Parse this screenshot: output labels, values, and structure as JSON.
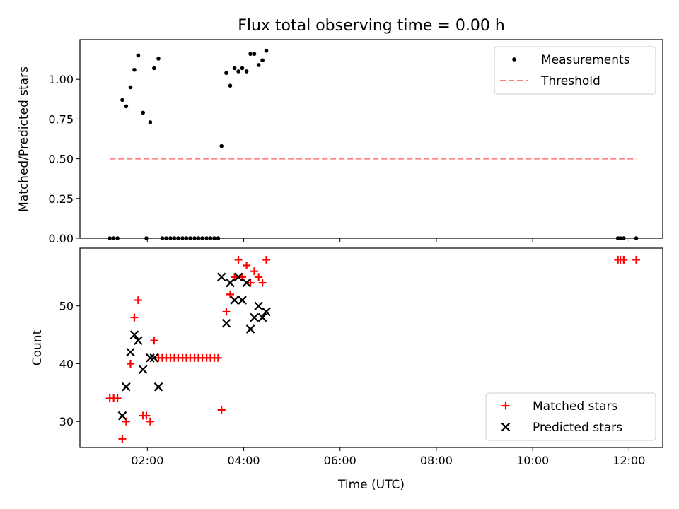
{
  "chart_data": [
    {
      "type": "scatter",
      "title": "Flux total observing time = 0.00 h",
      "xlabel": "",
      "ylabel": "Matched/Predicted stars",
      "xlim": [
        0.6,
        12.7
      ],
      "ylim": [
        0.0,
        1.25
      ],
      "yticks": [
        0.0,
        0.25,
        0.5,
        0.75,
        1.0
      ],
      "ytick_labels": [
        "0.00",
        "0.25",
        "0.50",
        "0.75",
        "1.00"
      ],
      "xticks": [
        2,
        4,
        6,
        8,
        10,
        12
      ],
      "legend": {
        "placement": "top-right",
        "entries": [
          "Measurements",
          "Threshold"
        ]
      },
      "series": [
        {
          "name": "Measurements",
          "marker": "dot",
          "color": "#000000",
          "points": [
            [
              1.22,
              0.0
            ],
            [
              1.3,
              0.0
            ],
            [
              1.38,
              0.0
            ],
            [
              1.48,
              0.87
            ],
            [
              1.56,
              0.83
            ],
            [
              1.65,
              0.95
            ],
            [
              1.73,
              1.06
            ],
            [
              1.81,
              1.15
            ],
            [
              1.91,
              0.79
            ],
            [
              1.98,
              0.0
            ],
            [
              2.06,
              0.73
            ],
            [
              2.14,
              1.07
            ],
            [
              2.23,
              1.13
            ],
            [
              2.31,
              0.0
            ],
            [
              2.39,
              0.0
            ],
            [
              2.48,
              0.0
            ],
            [
              2.56,
              0.0
            ],
            [
              2.64,
              0.0
            ],
            [
              2.73,
              0.0
            ],
            [
              2.81,
              0.0
            ],
            [
              2.89,
              0.0
            ],
            [
              2.98,
              0.0
            ],
            [
              3.06,
              0.0
            ],
            [
              3.14,
              0.0
            ],
            [
              3.23,
              0.0
            ],
            [
              3.31,
              0.0
            ],
            [
              3.39,
              0.0
            ],
            [
              3.47,
              0.0
            ],
            [
              3.54,
              0.58
            ],
            [
              3.64,
              1.04
            ],
            [
              3.72,
              0.96
            ],
            [
              3.81,
              1.07
            ],
            [
              3.89,
              1.05
            ],
            [
              3.97,
              1.07
            ],
            [
              4.06,
              1.05
            ],
            [
              4.14,
              1.16
            ],
            [
              4.22,
              1.16
            ],
            [
              4.31,
              1.09
            ],
            [
              4.39,
              1.12
            ],
            [
              4.47,
              1.18
            ],
            [
              11.77,
              0.0
            ],
            [
              11.82,
              0.0
            ],
            [
              11.89,
              0.0
            ],
            [
              12.15,
              0.0
            ]
          ]
        },
        {
          "name": "Threshold",
          "style": "dashed-line",
          "color": "#ff7f7f",
          "x": [
            1.22,
            12.15
          ],
          "y": [
            0.5,
            0.5
          ]
        }
      ]
    },
    {
      "type": "scatter",
      "title": "",
      "xlabel": "Time (UTC)",
      "ylabel": "Count",
      "xlim": [
        0.6,
        12.7
      ],
      "ylim": [
        25.5,
        60.0
      ],
      "yticks": [
        30,
        40,
        50
      ],
      "ytick_labels": [
        "30",
        "40",
        "50"
      ],
      "xticks": [
        2,
        4,
        6,
        8,
        10,
        12
      ],
      "xtick_labels": [
        "02:00",
        "04:00",
        "06:00",
        "08:00",
        "10:00",
        "12:00"
      ],
      "legend": {
        "placement": "bottom-right",
        "entries": [
          "Matched stars",
          "Predicted stars"
        ]
      },
      "series": [
        {
          "name": "Matched stars",
          "marker": "plus",
          "color": "#ff0000",
          "points": [
            [
              1.22,
              34
            ],
            [
              1.3,
              34
            ],
            [
              1.38,
              34
            ],
            [
              1.48,
              27
            ],
            [
              1.56,
              30
            ],
            [
              1.65,
              40
            ],
            [
              1.73,
              48
            ],
            [
              1.81,
              51
            ],
            [
              1.91,
              31
            ],
            [
              1.98,
              31
            ],
            [
              2.06,
              30
            ],
            [
              2.14,
              44
            ],
            [
              2.23,
              41
            ],
            [
              2.31,
              41
            ],
            [
              2.39,
              41
            ],
            [
              2.48,
              41
            ],
            [
              2.56,
              41
            ],
            [
              2.64,
              41
            ],
            [
              2.73,
              41
            ],
            [
              2.81,
              41
            ],
            [
              2.89,
              41
            ],
            [
              2.98,
              41
            ],
            [
              3.06,
              41
            ],
            [
              3.14,
              41
            ],
            [
              3.23,
              41
            ],
            [
              3.31,
              41
            ],
            [
              3.39,
              41
            ],
            [
              3.47,
              41
            ],
            [
              3.54,
              32
            ],
            [
              3.64,
              49
            ],
            [
              3.72,
              52
            ],
            [
              3.81,
              55
            ],
            [
              3.89,
              58
            ],
            [
              3.97,
              55
            ],
            [
              4.06,
              57
            ],
            [
              4.14,
              54
            ],
            [
              4.22,
              56
            ],
            [
              4.31,
              55
            ],
            [
              4.39,
              54
            ],
            [
              4.47,
              58
            ],
            [
              11.77,
              58
            ],
            [
              11.82,
              58
            ],
            [
              11.89,
              58
            ],
            [
              12.15,
              58
            ]
          ]
        },
        {
          "name": "Predicted stars",
          "marker": "x",
          "color": "#000000",
          "points": [
            [
              1.48,
              31
            ],
            [
              1.56,
              36
            ],
            [
              1.65,
              42
            ],
            [
              1.73,
              45
            ],
            [
              1.81,
              44
            ],
            [
              1.91,
              39
            ],
            [
              2.06,
              41
            ],
            [
              2.14,
              41
            ],
            [
              2.23,
              36
            ],
            [
              3.54,
              55
            ],
            [
              3.64,
              47
            ],
            [
              3.72,
              54
            ],
            [
              3.81,
              51
            ],
            [
              3.89,
              55
            ],
            [
              3.97,
              51
            ],
            [
              4.06,
              54
            ],
            [
              4.14,
              46
            ],
            [
              4.22,
              48
            ],
            [
              4.31,
              50
            ],
            [
              4.39,
              48
            ],
            [
              4.47,
              49
            ]
          ]
        }
      ]
    }
  ]
}
